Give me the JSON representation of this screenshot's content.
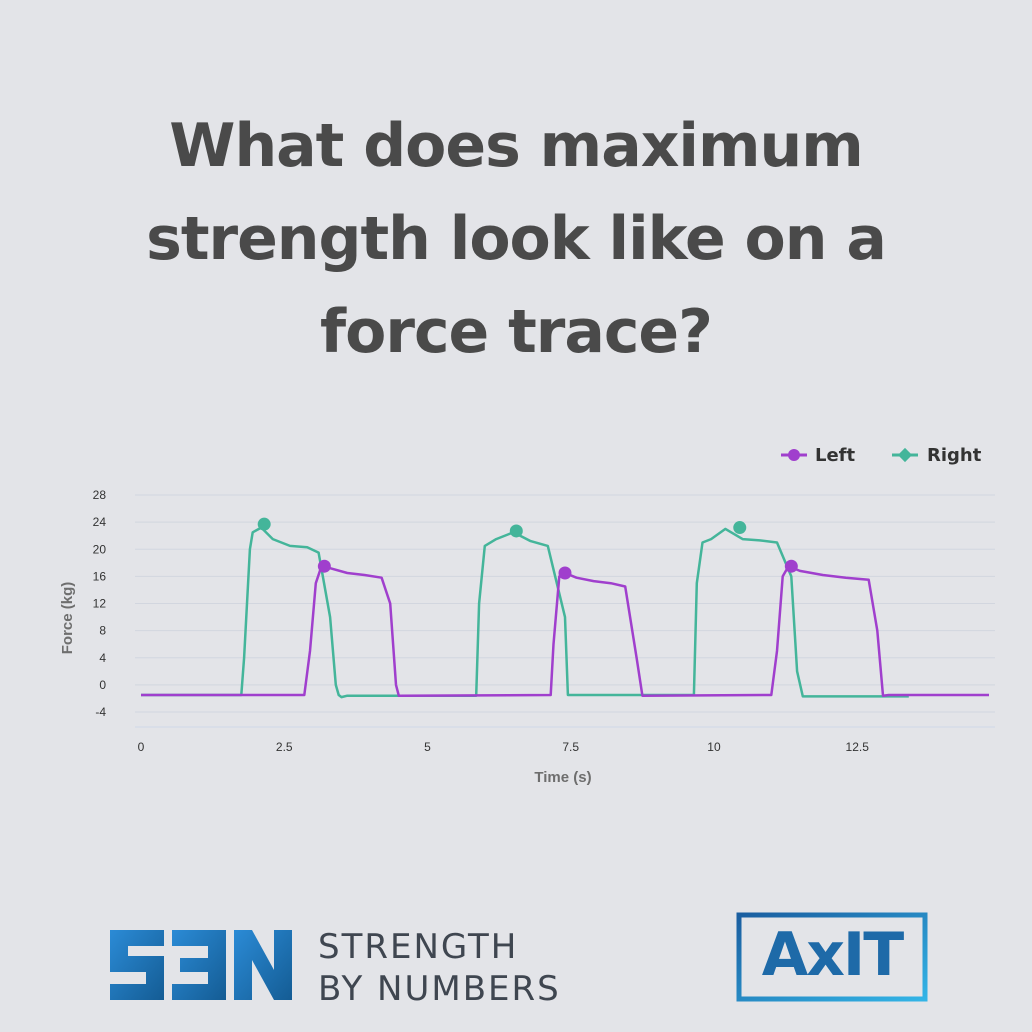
{
  "headline": {
    "line1": "What does maximum",
    "line2": "strength look like on a",
    "line3": "force trace?"
  },
  "chart_data": {
    "type": "line",
    "xlabel": "Time (s)",
    "ylabel": "Force (kg)",
    "xlim": [
      0,
      14.8
    ],
    "ylim": [
      -4,
      28
    ],
    "x_ticks": [
      0,
      2.5,
      5,
      7.5,
      10,
      12.5
    ],
    "x_tick_labels": [
      "0",
      "2.5",
      "5",
      "7.5",
      "10",
      "12.5"
    ],
    "y_ticks": [
      28,
      24,
      20,
      16,
      12,
      8,
      4,
      0,
      -4
    ],
    "y_tick_labels": [
      "28",
      "24",
      "20",
      "16",
      "12",
      "8",
      "4",
      "0",
      "-4"
    ],
    "grid": true,
    "legend_position": "top-right",
    "series": [
      {
        "name": "Right",
        "color": "#44b59a",
        "marker": "diamond",
        "x": [
          0,
          1.75,
          1.8,
          1.9,
          1.95,
          2.1,
          2.3,
          2.6,
          2.9,
          3.1,
          3.3,
          3.4,
          3.45,
          3.5,
          3.6,
          5.85,
          5.9,
          6.0,
          6.2,
          6.5,
          6.8,
          7.1,
          7.4,
          7.45,
          7.55,
          9.65,
          9.7,
          9.8,
          9.95,
          10.2,
          10.5,
          10.8,
          11.1,
          11.35,
          11.45,
          11.55,
          13.4
        ],
        "values": [
          -1.5,
          -1.5,
          4,
          20,
          22.5,
          23.2,
          21.5,
          20.5,
          20.3,
          19.5,
          10,
          0,
          -1.5,
          -1.8,
          -1.6,
          -1.6,
          12,
          20.5,
          21.5,
          22.5,
          21.2,
          20.5,
          10,
          -1.5,
          -1.5,
          -1.5,
          15,
          21,
          21.5,
          23,
          21.5,
          21.3,
          21,
          16,
          2,
          -1.7,
          -1.7
        ],
        "peak": {
          "x": 2.15,
          "y": 23.7
        }
      },
      {
        "name": "Left",
        "color": "#a03fcd",
        "marker": "circle",
        "x": [
          0,
          2.85,
          2.95,
          3.05,
          3.15,
          3.3,
          3.6,
          3.9,
          4.2,
          4.35,
          4.45,
          4.5,
          7.15,
          7.2,
          7.3,
          7.4,
          7.6,
          7.9,
          8.2,
          8.45,
          8.65,
          8.75,
          11.0,
          11.1,
          11.2,
          11.3,
          11.5,
          11.9,
          12.3,
          12.7,
          12.85,
          12.95,
          13.05,
          14.8
        ],
        "values": [
          -1.5,
          -1.5,
          5,
          15,
          17.5,
          17.2,
          16.5,
          16.2,
          15.8,
          12,
          0,
          -1.6,
          -1.5,
          6,
          16,
          16.5,
          15.8,
          15.3,
          15,
          14.5,
          4,
          -1.6,
          -1.5,
          5,
          16,
          17.5,
          16.8,
          16.2,
          15.8,
          15.5,
          8,
          -1.6,
          -1.5,
          -1.5
        ],
        "peak": {
          "x": 3.2,
          "y": 17.5
        }
      }
    ],
    "peaks": [
      {
        "series": "Right",
        "x": 2.15,
        "y": 23.7
      },
      {
        "series": "Right",
        "x": 6.55,
        "y": 22.7
      },
      {
        "series": "Right",
        "x": 10.45,
        "y": 23.2
      },
      {
        "series": "Left",
        "x": 3.2,
        "y": 17.5
      },
      {
        "series": "Left",
        "x": 7.4,
        "y": 16.5
      },
      {
        "series": "Left",
        "x": 11.35,
        "y": 17.5
      }
    ]
  },
  "logos": {
    "sbn_mark": "SBN",
    "sbn_line1": "STRENGTH",
    "sbn_line2": "BY NUMBERS",
    "axit": "AxIT",
    "sbn_color": "#1a6fb0",
    "axit_color": "#1e6aa8"
  }
}
